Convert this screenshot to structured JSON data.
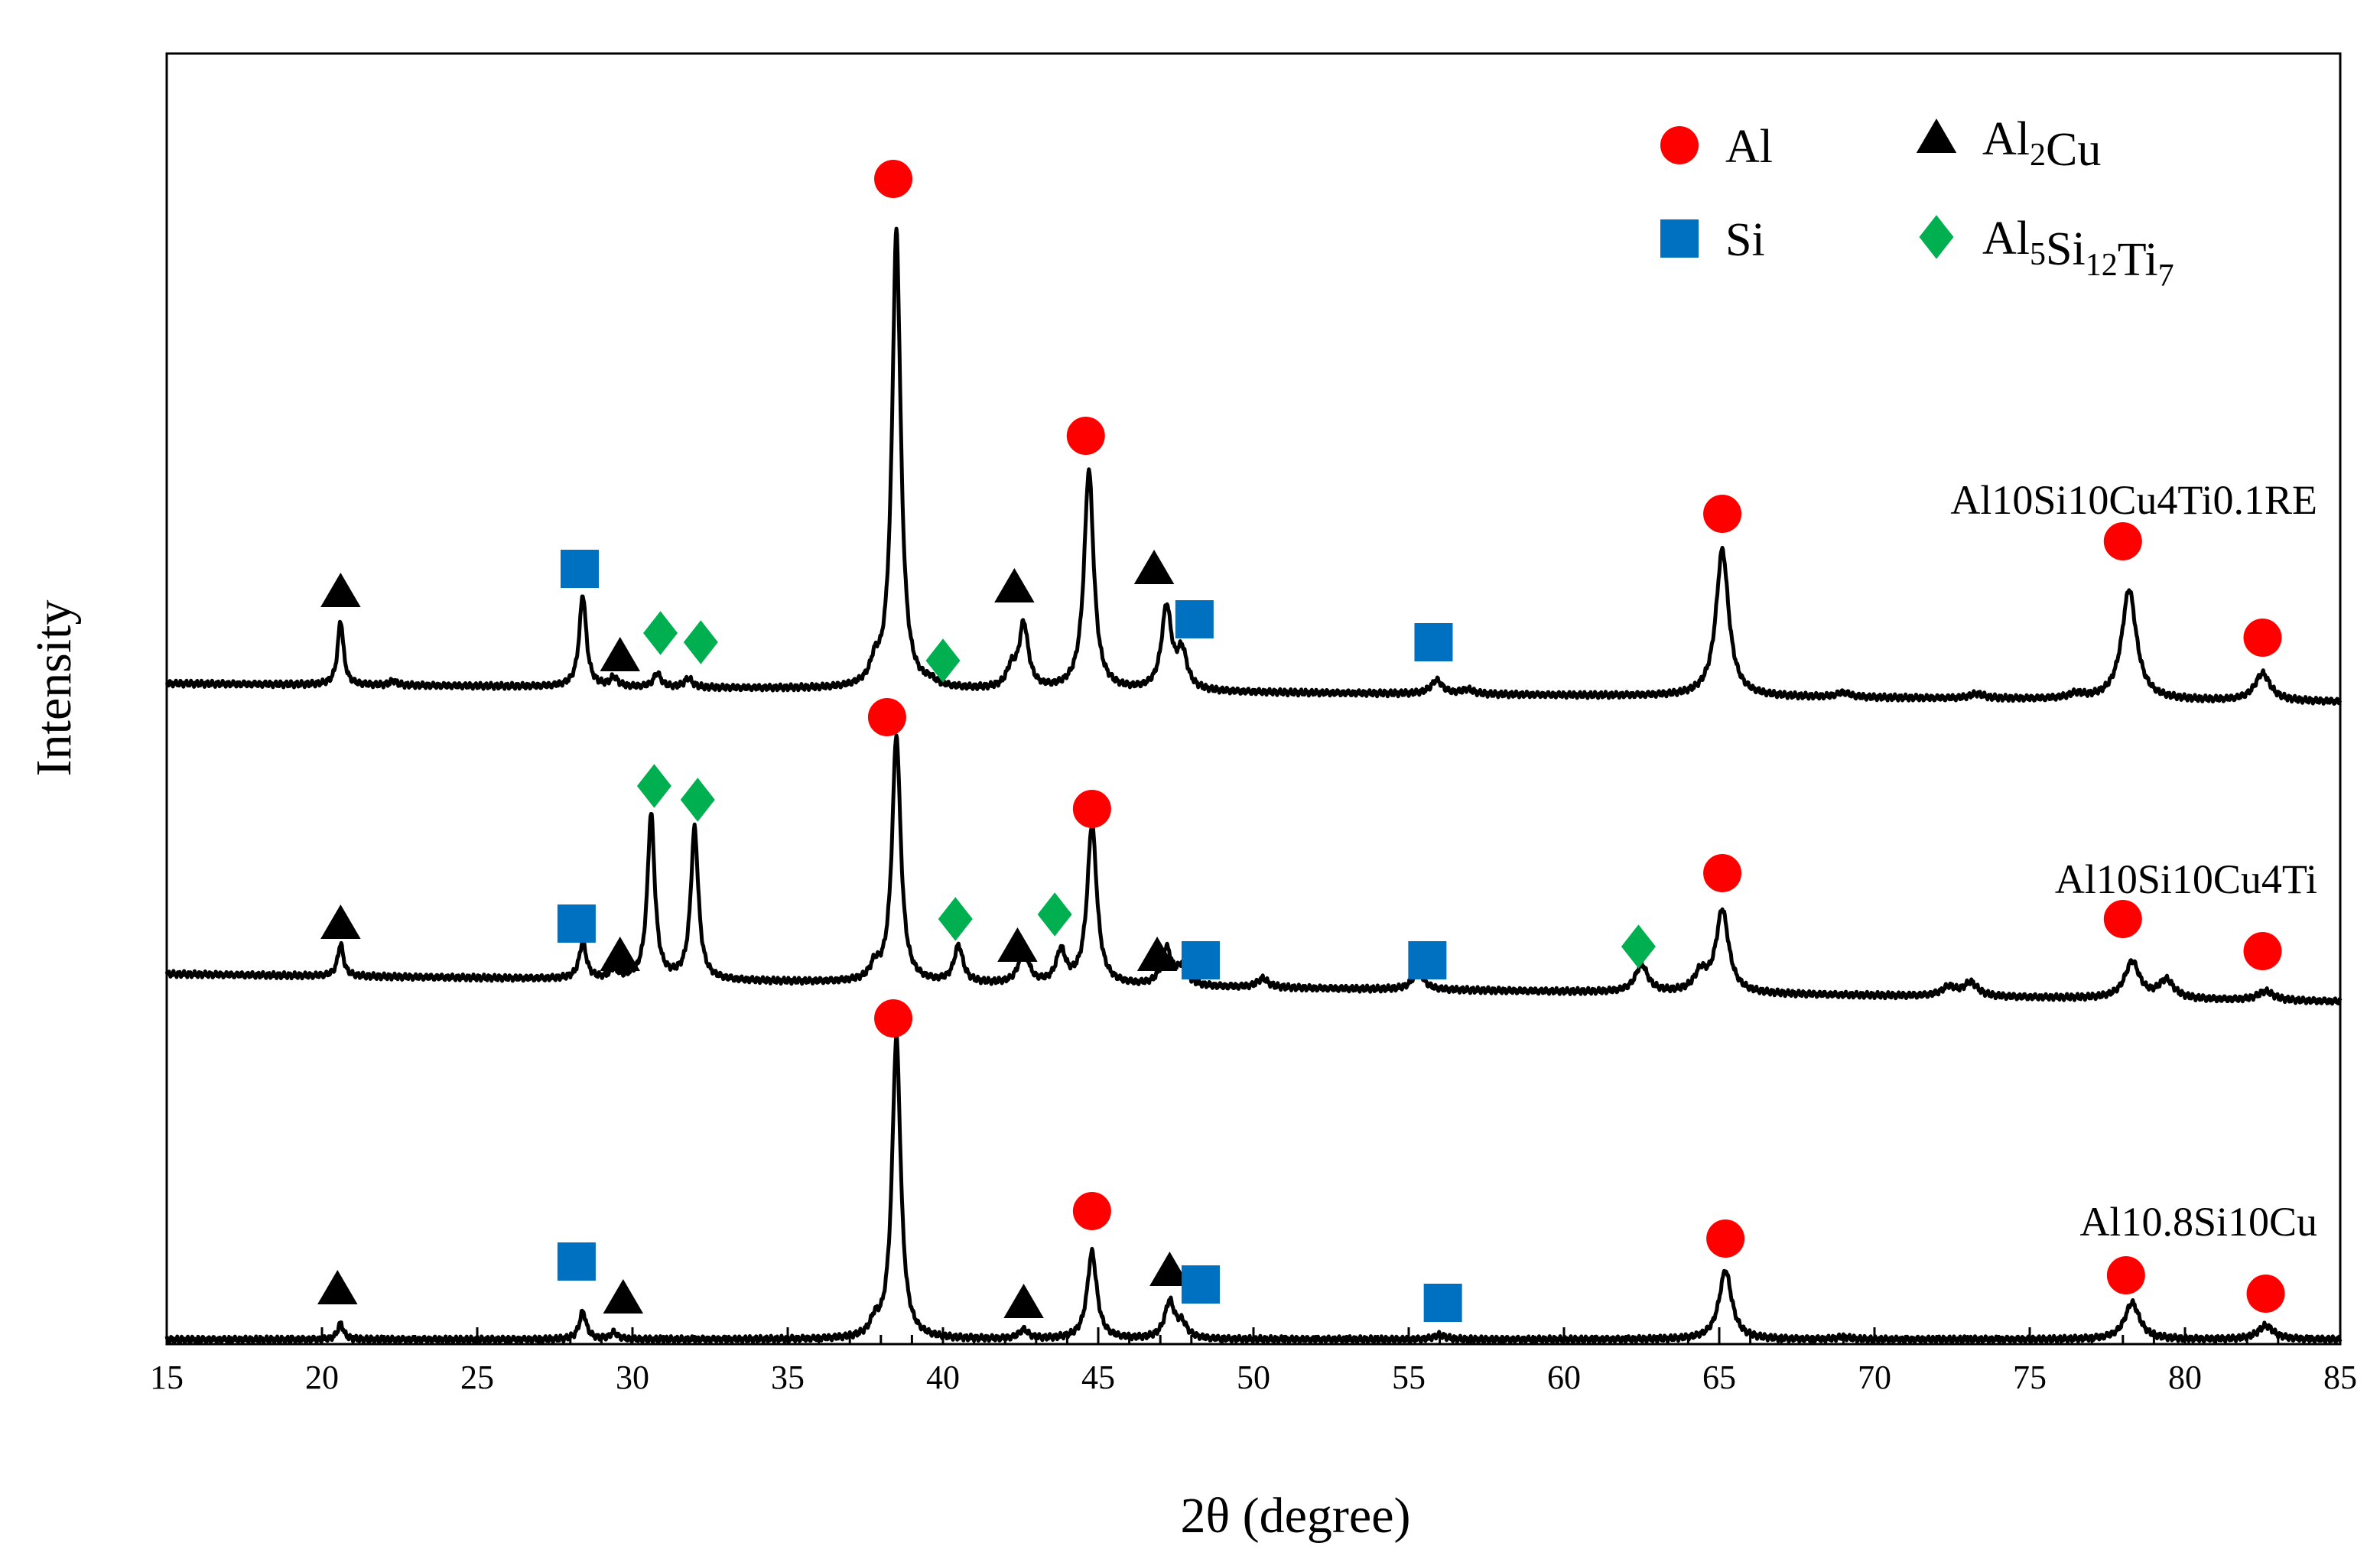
{
  "chart_data": {
    "type": "line",
    "title": "",
    "xlabel": "2θ (degree)",
    "ylabel": "Intensity",
    "xlim": [
      15,
      85
    ],
    "xticks": [
      15,
      20,
      25,
      30,
      35,
      40,
      45,
      50,
      55,
      60,
      65,
      70,
      75,
      80,
      85
    ],
    "yticks_shown": false,
    "grid": false,
    "legend_position": "top-right",
    "legend": [
      {
        "phase": "Al",
        "marker": "circle",
        "color": "#ff0000",
        "base": "Al",
        "sub": "",
        "base2": "",
        "sub2": "",
        "base3": "",
        "sub3": ""
      },
      {
        "phase": "Al2Cu",
        "marker": "triangle",
        "color": "#000000",
        "base": "Al",
        "sub": "2",
        "base2": "Cu",
        "sub2": "",
        "base3": "",
        "sub3": ""
      },
      {
        "phase": "Si",
        "marker": "square",
        "color": "#0070c0",
        "base": "Si",
        "sub": "",
        "base2": "",
        "sub2": "",
        "base3": "",
        "sub3": ""
      },
      {
        "phase": "Al5Si12Ti7",
        "marker": "diamond",
        "color": "#00b050",
        "base": "Al",
        "sub": "5",
        "base2": "Si",
        "sub2": "12",
        "base3": "Ti",
        "sub3": "7"
      }
    ],
    "series": [
      {
        "name": "Al10Si10Cu4Ti0.1RE",
        "baseline_left": 0.04,
        "baseline_right": 0.0,
        "peaks": [
          [
            20.6,
            0.14
          ],
          [
            22.3,
            0.01
          ],
          [
            28.4,
            0.2
          ],
          [
            29.4,
            0.02
          ],
          [
            30.8,
            0.03
          ],
          [
            31.8,
            0.02
          ],
          [
            37.8,
            0.04
          ],
          [
            38.5,
            1.0
          ],
          [
            39.6,
            0.01
          ],
          [
            42.2,
            0.04
          ],
          [
            42.6,
            0.14
          ],
          [
            44.7,
            0.48
          ],
          [
            47.2,
            0.18
          ],
          [
            47.7,
            0.08
          ],
          [
            55.9,
            0.03
          ],
          [
            56.9,
            0.01
          ],
          [
            65.1,
            0.32
          ],
          [
            69.0,
            0.01
          ],
          [
            73.3,
            0.01
          ],
          [
            76.5,
            0.01
          ],
          [
            78.2,
            0.24
          ],
          [
            82.5,
            0.06
          ]
        ],
        "markers": [
          {
            "phase": "Al2Cu",
            "x": 20.6,
            "h": 0.24
          },
          {
            "phase": "Si",
            "x": 28.3,
            "h": 0.29
          },
          {
            "phase": "Al2Cu",
            "x": 29.6,
            "h": 0.1
          },
          {
            "phase": "Al5Si12Ti7",
            "x": 30.9,
            "h": 0.15
          },
          {
            "phase": "Al5Si12Ti7",
            "x": 32.2,
            "h": 0.13
          },
          {
            "phase": "Al",
            "x": 38.4,
            "h": 1.14
          },
          {
            "phase": "Al5Si12Ti7",
            "x": 40.0,
            "h": 0.09
          },
          {
            "phase": "Al2Cu",
            "x": 42.3,
            "h": 0.25
          },
          {
            "phase": "Al",
            "x": 44.6,
            "h": 0.58
          },
          {
            "phase": "Al2Cu",
            "x": 46.8,
            "h": 0.29
          },
          {
            "phase": "Si",
            "x": 48.1,
            "h": 0.18
          },
          {
            "phase": "Si",
            "x": 55.8,
            "h": 0.13
          },
          {
            "phase": "Al",
            "x": 65.1,
            "h": 0.41
          },
          {
            "phase": "Al",
            "x": 78.0,
            "h": 0.35
          },
          {
            "phase": "Al",
            "x": 82.5,
            "h": 0.14
          }
        ]
      },
      {
        "name": "Al10Si10Cu4Ti",
        "baseline_left": 0.06,
        "baseline_right": 0.0,
        "peaks": [
          [
            20.6,
            0.07
          ],
          [
            28.4,
            0.08
          ],
          [
            29.4,
            0.02
          ],
          [
            30.6,
            0.36
          ],
          [
            32.0,
            0.33
          ],
          [
            37.8,
            0.03
          ],
          [
            38.5,
            0.54
          ],
          [
            40.5,
            0.08
          ],
          [
            42.6,
            0.08
          ],
          [
            43.8,
            0.07
          ],
          [
            44.8,
            0.35
          ],
          [
            47.2,
            0.08
          ],
          [
            47.7,
            0.04
          ],
          [
            50.3,
            0.02
          ],
          [
            55.3,
            0.04
          ],
          [
            62.5,
            0.06
          ],
          [
            64.4,
            0.04
          ],
          [
            65.1,
            0.18
          ],
          [
            72.4,
            0.02
          ],
          [
            73.1,
            0.03
          ],
          [
            78.3,
            0.08
          ],
          [
            79.4,
            0.04
          ],
          [
            82.6,
            0.02
          ]
        ],
        "markers": [
          {
            "phase": "Al2Cu",
            "x": 20.6,
            "h": 0.17
          },
          {
            "phase": "Si",
            "x": 28.2,
            "h": 0.17
          },
          {
            "phase": "Al2Cu",
            "x": 29.6,
            "h": 0.1
          },
          {
            "phase": "Al5Si12Ti7",
            "x": 30.7,
            "h": 0.47
          },
          {
            "phase": "Al5Si12Ti7",
            "x": 32.1,
            "h": 0.44
          },
          {
            "phase": "Al",
            "x": 38.2,
            "h": 0.62
          },
          {
            "phase": "Al5Si12Ti7",
            "x": 40.4,
            "h": 0.18
          },
          {
            "phase": "Al2Cu",
            "x": 42.4,
            "h": 0.12
          },
          {
            "phase": "Al5Si12Ti7",
            "x": 43.6,
            "h": 0.19
          },
          {
            "phase": "Al",
            "x": 44.8,
            "h": 0.42
          },
          {
            "phase": "Al2Cu",
            "x": 46.9,
            "h": 0.1
          },
          {
            "phase": "Si",
            "x": 48.3,
            "h": 0.09
          },
          {
            "phase": "Si",
            "x": 55.6,
            "h": 0.09
          },
          {
            "phase": "Al5Si12Ti7",
            "x": 62.4,
            "h": 0.12
          },
          {
            "phase": "Al",
            "x": 65.1,
            "h": 0.28
          },
          {
            "phase": "Al",
            "x": 78.0,
            "h": 0.18
          },
          {
            "phase": "Al",
            "x": 82.5,
            "h": 0.11
          }
        ]
      },
      {
        "name": "Al10.8Si10Cu",
        "baseline_left": 0.0,
        "baseline_right": 0.0,
        "peaks": [
          [
            20.6,
            0.035
          ],
          [
            28.4,
            0.06
          ],
          [
            29.4,
            0.015
          ],
          [
            37.8,
            0.03
          ],
          [
            38.5,
            0.66
          ],
          [
            42.6,
            0.02
          ],
          [
            44.8,
            0.19
          ],
          [
            47.3,
            0.08
          ],
          [
            47.7,
            0.03
          ],
          [
            56.0,
            0.01
          ],
          [
            65.2,
            0.15
          ],
          [
            69.0,
            0.005
          ],
          [
            78.3,
            0.08
          ],
          [
            82.6,
            0.03
          ]
        ],
        "markers": [
          {
            "phase": "Al2Cu",
            "x": 20.5,
            "h": 0.11
          },
          {
            "phase": "Si",
            "x": 28.2,
            "h": 0.17
          },
          {
            "phase": "Al2Cu",
            "x": 29.7,
            "h": 0.09
          },
          {
            "phase": "Al",
            "x": 38.4,
            "h": 0.7
          },
          {
            "phase": "Al2Cu",
            "x": 42.6,
            "h": 0.08
          },
          {
            "phase": "Al",
            "x": 44.8,
            "h": 0.28
          },
          {
            "phase": "Al2Cu",
            "x": 47.3,
            "h": 0.15
          },
          {
            "phase": "Si",
            "x": 48.3,
            "h": 0.12
          },
          {
            "phase": "Si",
            "x": 56.1,
            "h": 0.08
          },
          {
            "phase": "Al",
            "x": 65.2,
            "h": 0.22
          },
          {
            "phase": "Al",
            "x": 78.1,
            "h": 0.14
          },
          {
            "phase": "Al",
            "x": 82.6,
            "h": 0.1
          }
        ]
      }
    ]
  }
}
